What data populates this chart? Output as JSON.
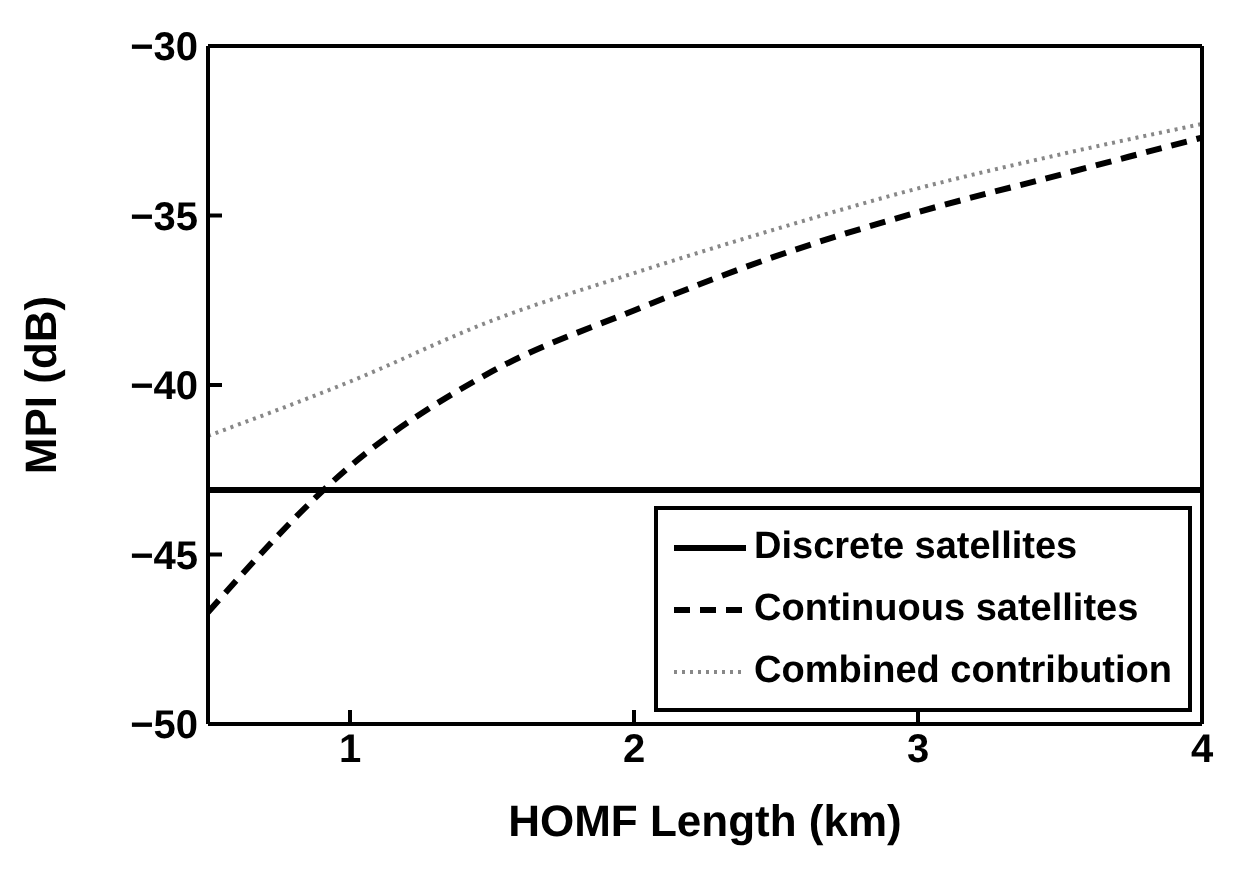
{
  "chart_data": {
    "type": "line",
    "xlabel": "HOMF Length (km)",
    "ylabel": "MPI (dB)",
    "x": [
      0.5,
      1,
      1.5,
      2,
      2.5,
      3,
      3.5,
      4
    ],
    "series": [
      {
        "name": "Discrete satellites",
        "color": "#000000",
        "line_style": "solid",
        "values": [
          -43.1,
          -43.1,
          -43.1,
          -43.1,
          -43.1,
          -43.1,
          -43.1,
          -43.1
        ]
      },
      {
        "name": "Continuous satellites",
        "color": "#000000",
        "line_style": "dashed",
        "values": [
          -46.7,
          -42.4,
          -39.6,
          -37.8,
          -36.2,
          -34.9,
          -33.8,
          -32.7
        ]
      },
      {
        "name": "Combined contribution",
        "color": "#888888",
        "line_style": "dotted",
        "values": [
          -41.5,
          -39.9,
          -38.1,
          -36.7,
          -35.4,
          -34.2,
          -33.2,
          -32.3
        ]
      }
    ],
    "xlim": [
      0.5,
      4
    ],
    "xticks": [
      1,
      2,
      3,
      4
    ],
    "ylim": [
      -50,
      -30
    ],
    "yticks": [
      {
        "value": -50,
        "label": "−50"
      },
      {
        "value": -45,
        "label": "−45"
      },
      {
        "value": -40,
        "label": "−40"
      },
      {
        "value": -35,
        "label": "−35"
      },
      {
        "value": -30,
        "label": "−30"
      }
    ],
    "grid": false,
    "legend": "bottom right"
  }
}
